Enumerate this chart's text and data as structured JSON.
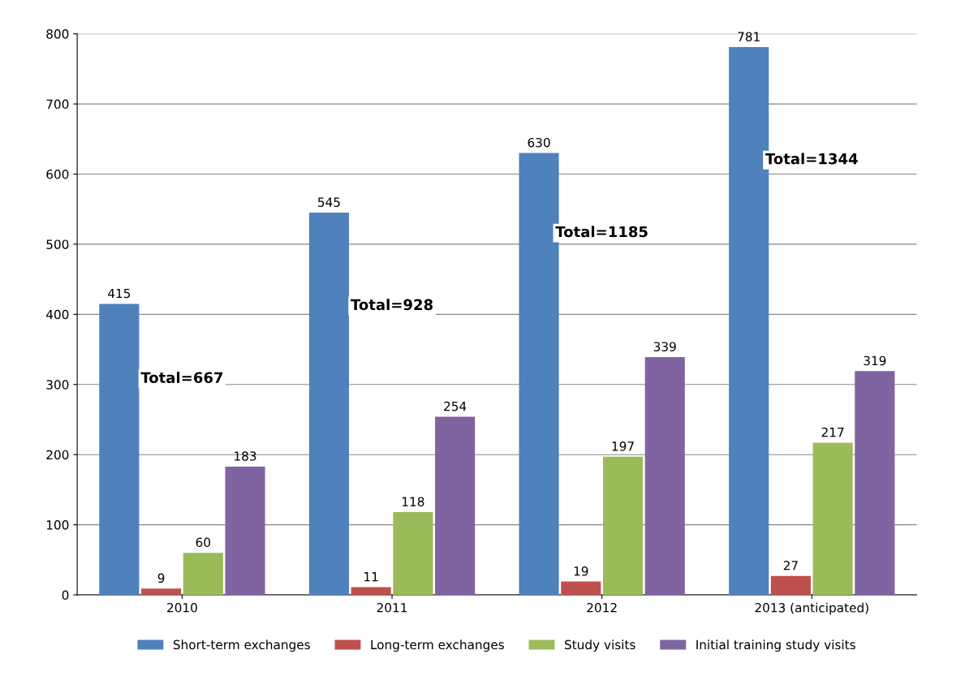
{
  "chart_data": {
    "type": "bar",
    "categories": [
      "2010",
      "2011",
      "2012",
      "2013 (anticipated)"
    ],
    "series": [
      {
        "name": "Short-term exchanges",
        "color": "#4f81bd",
        "values": [
          415,
          545,
          630,
          781
        ]
      },
      {
        "name": "Long-term exchanges",
        "color": "#c0504d",
        "values": [
          9,
          11,
          19,
          27
        ]
      },
      {
        "name": "Study visits",
        "color": "#9bbb59",
        "values": [
          60,
          118,
          197,
          217
        ]
      },
      {
        "name": "Initial training study visits",
        "color": "#8064a2",
        "values": [
          183,
          254,
          339,
          319
        ]
      }
    ],
    "ylim": [
      0,
      800
    ],
    "yticks": [
      0,
      100,
      200,
      300,
      400,
      500,
      600,
      700,
      800
    ],
    "grid": "y",
    "legend": "bottom",
    "data_labels": true,
    "annotations": [
      "Total=667",
      "Total=928",
      "Total=1185",
      "Total=1344"
    ]
  }
}
